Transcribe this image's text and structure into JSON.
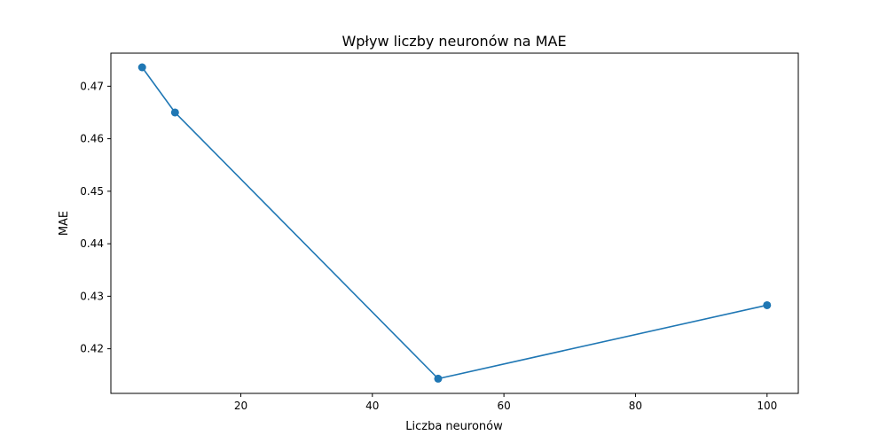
{
  "chart_data": {
    "type": "line",
    "title": "Wpływ liczby neuronów na MAE",
    "xlabel": "Liczba neuronów",
    "ylabel": "MAE",
    "xlim": [
      0.25,
      104.75
    ],
    "ylim": [
      0.4115,
      0.4763
    ],
    "xticks": [
      20,
      40,
      60,
      80,
      100
    ],
    "yticks": [
      0.42,
      0.43,
      0.44,
      0.45,
      0.46,
      0.47
    ],
    "grid": false,
    "series": [
      {
        "color": "#1f77b4",
        "marker": "circle",
        "x": [
          5,
          10,
          50,
          100
        ],
        "y": [
          0.4736,
          0.465,
          0.4143,
          0.4283
        ]
      }
    ]
  }
}
